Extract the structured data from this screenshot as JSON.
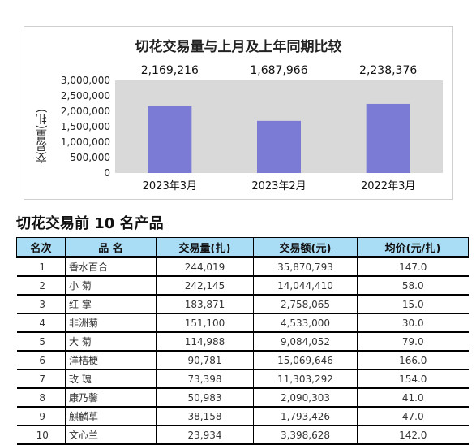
{
  "chart_data": {
    "type": "bar",
    "title": "切花交易量与上月及上年同期比较",
    "ylabel": "交易量(扎)",
    "categories": [
      "2023年3月",
      "2023年2月",
      "2022年3月"
    ],
    "values": [
      2169216,
      1687966,
      2238376
    ],
    "value_labels": [
      "2,169,216",
      "1,687,966",
      "2,238,376"
    ],
    "yticks": [
      "3,000,000",
      "2,500,000",
      "2,000,000",
      "1,500,000",
      "1,000,000",
      "500,000",
      "0"
    ],
    "ylim": [
      0,
      3000000
    ],
    "bar_color": "#7b7bd6",
    "plot_bg": "#d9d9d9"
  },
  "table": {
    "title": "切花交易前 10 名产品",
    "headers": [
      "名次",
      "品 名",
      "交易量(扎)",
      "交易额(元)",
      "均价(元/扎)"
    ],
    "rows": [
      [
        "1",
        "香水百合",
        "244,019",
        "35,870,793",
        "147.0"
      ],
      [
        "2",
        "小    菊",
        "242,145",
        "14,044,410",
        "58.0"
      ],
      [
        "3",
        "红    掌",
        "183,871",
        "2,758,065",
        "15.0"
      ],
      [
        "4",
        "非洲菊",
        "151,100",
        "4,533,000",
        "30.0"
      ],
      [
        "5",
        "大    菊",
        "114,988",
        "9,084,052",
        "79.0"
      ],
      [
        "6",
        "洋桔梗",
        "90,781",
        "15,069,646",
        "166.0"
      ],
      [
        "7",
        "玫    瑰",
        "73,398",
        "11,303,292",
        "154.0"
      ],
      [
        "8",
        "康乃馨",
        "50,983",
        "2,090,303",
        "41.0"
      ],
      [
        "9",
        "麒麟草",
        "38,158",
        "1,793,426",
        "47.0"
      ],
      [
        "10",
        "文心兰",
        "23,934",
        "3,398,628",
        "142.0"
      ]
    ]
  },
  "colors": {
    "header_bg": "#a9dcf5"
  }
}
